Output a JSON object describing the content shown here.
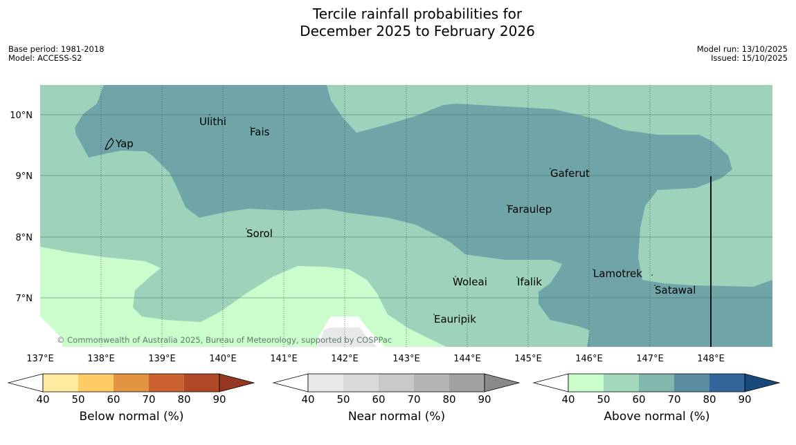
{
  "title": {
    "line1": "Tercile rainfall probabilities for",
    "line2": "December 2025 to February 2026"
  },
  "meta": {
    "base_period": "Base period: 1981-2018",
    "model": "Model: ACCESS-S2",
    "model_run": "Model run: 13/10/2025",
    "issued": "Issued: 15/10/2025"
  },
  "map": {
    "lat_labels": [
      "10°N",
      "9°N",
      "8°N",
      "7°N"
    ],
    "lon_labels": [
      "137°E",
      "138°E",
      "139°E",
      "140°E",
      "141°E",
      "142°E",
      "143°E",
      "144°E",
      "145°E",
      "146°E",
      "147°E",
      "148°E"
    ],
    "places": [
      "Yap",
      "Ulithi",
      "Fais",
      "Gaferut",
      "Faraulep",
      "Sorol",
      "Woleai",
      "Ifalik",
      "Lamotrek",
      "Satawal",
      "Eauripik"
    ],
    "copyright": "© Commonwealth of Australia 2025, Bureau of Meteorology, supported by COSPPac",
    "colors": {
      "above_50_60": "#9ed2bb",
      "above_60_70": "#6fa5a9",
      "above_40_50": "#cbfccc",
      "near_40_50": "#e8e8e8"
    }
  },
  "colorbars": {
    "below": {
      "label": "Below normal (%)",
      "ticks": [
        "40",
        "50",
        "60",
        "70",
        "80",
        "90"
      ],
      "colors": [
        "#ffeca0",
        "#fecb65",
        "#e29443",
        "#cd6231",
        "#ae4827",
        "#973622"
      ]
    },
    "near": {
      "label": "Near normal (%)",
      "ticks": [
        "40",
        "50",
        "60",
        "70",
        "80",
        "90"
      ],
      "colors": [
        "#e8e8e8",
        "#d9d9d9",
        "#c9c9c9",
        "#b5b5b5",
        "#a1a1a1",
        "#8a8a8a"
      ]
    },
    "above": {
      "label": "Above normal (%)",
      "ticks": [
        "40",
        "50",
        "60",
        "70",
        "80",
        "90"
      ],
      "colors": [
        "#cbfccc",
        "#a3d8bd",
        "#82b7ad",
        "#5a8fa2",
        "#33679b",
        "#174a7a"
      ]
    }
  }
}
